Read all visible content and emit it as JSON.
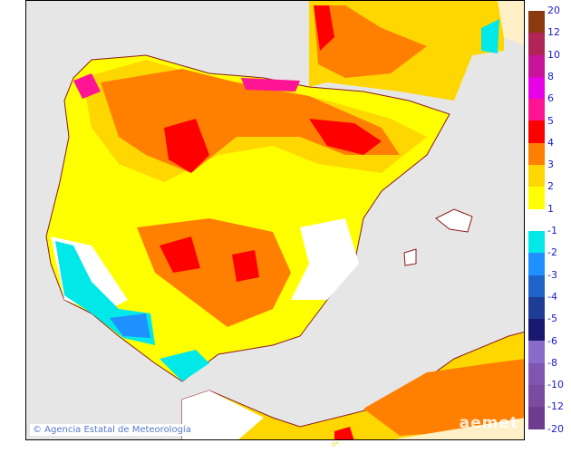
{
  "map": {
    "credit": "© Agencia Estatal de Meteorología",
    "logo": "aemet",
    "longitude_label": "0°",
    "sea_color": "#e6e6e6",
    "border_color": "#8b1a1a"
  },
  "legend": {
    "swatches": [
      {
        "color": "#8b3a0f"
      },
      {
        "color": "#b02458"
      },
      {
        "color": "#c8149a"
      },
      {
        "color": "#e600e6"
      },
      {
        "color": "#ff1493"
      },
      {
        "color": "#ff0000"
      },
      {
        "color": "#ff8000"
      },
      {
        "color": "#ffd700"
      },
      {
        "color": "#ffff00"
      },
      {
        "color": null
      },
      {
        "color": "#00e8e8"
      },
      {
        "color": "#1e90ff"
      },
      {
        "color": "#1e64c8"
      },
      {
        "color": "#1e3c96"
      },
      {
        "color": "#191970"
      },
      {
        "color": "#8a6bc8"
      },
      {
        "color": "#7f55b0"
      },
      {
        "color": "#7a4b9e"
      },
      {
        "color": "#6e3c8c"
      }
    ],
    "labels": [
      "20",
      "12",
      "10",
      "8",
      "6",
      "5",
      "4",
      "3",
      "2",
      "1",
      "-1",
      "-2",
      "-3",
      "-4",
      "-5",
      "-6",
      "-8",
      "-10",
      "-12",
      "-20"
    ]
  }
}
